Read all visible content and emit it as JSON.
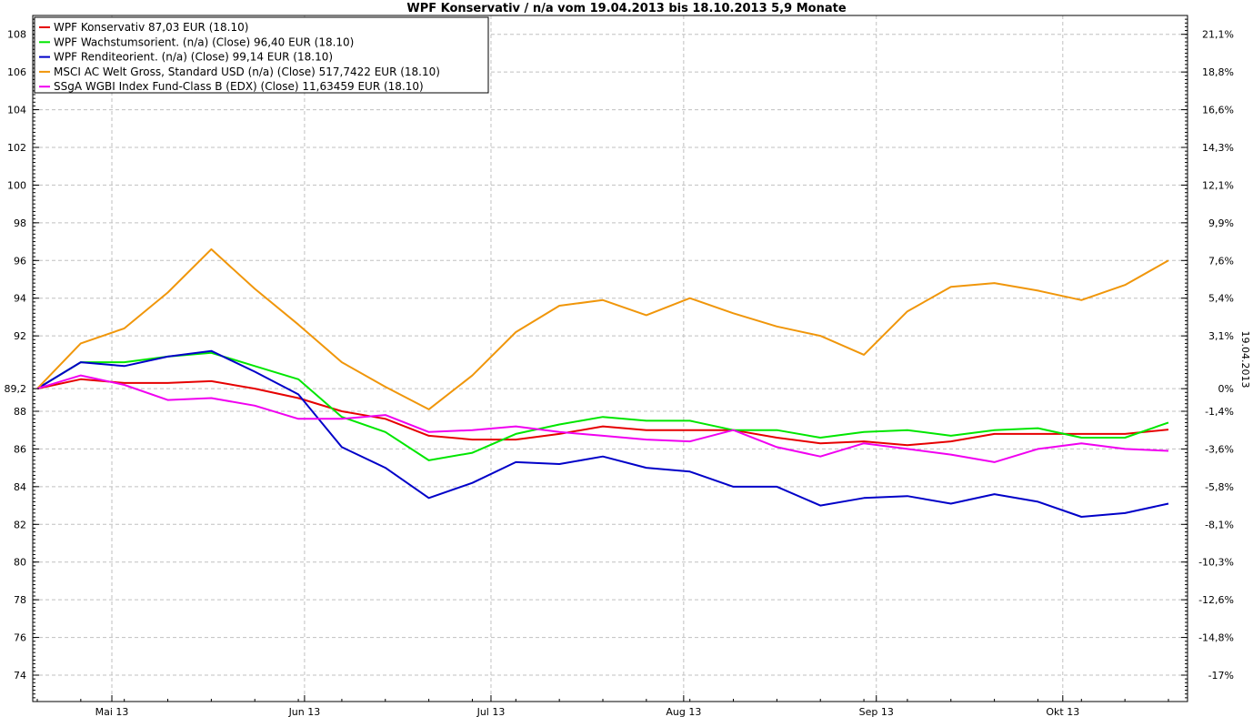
{
  "chart_data": {
    "type": "line",
    "title": "WPF Konservativ / n/a vom 19.04.2013 bis 18.10.2013 5,9 Monate",
    "x_labels": [
      "Mai 13",
      "Jun 13",
      "Jul 13",
      "Aug 13",
      "Sep 13",
      "Okt 13"
    ],
    "y_ticks": [
      "74",
      "76",
      "78",
      "80",
      "82",
      "84",
      "86",
      "88",
      "89,2",
      "92",
      "94",
      "96",
      "98",
      "100",
      "102",
      "104",
      "106",
      "108"
    ],
    "y_right_ticks": [
      "-17%",
      "-14,8%",
      "-12,6%",
      "-10,3%",
      "-8,1%",
      "-5,8%",
      "-3,6%",
      "-1,4%",
      "0%",
      "3,1%",
      "5,4%",
      "7,6%",
      "9,9%",
      "12,1%",
      "14,3%",
      "16,6%",
      "18,8%",
      "21,1%"
    ],
    "right_axis_label": "19.04.2013",
    "ylim": [
      72.6,
      109
    ],
    "grid": true,
    "legend_position": "top-left",
    "x_dates": [
      "19.04",
      "26.04",
      "03.05",
      "10.05",
      "17.05",
      "24.05",
      "31.05",
      "07.06",
      "14.06",
      "21.06",
      "28.06",
      "05.07",
      "12.07",
      "19.07",
      "26.07",
      "02.08",
      "09.08",
      "16.08",
      "23.08",
      "30.08",
      "06.09",
      "13.09",
      "20.09",
      "27.09",
      "04.10",
      "11.10",
      "18.10"
    ],
    "series": [
      {
        "name": "WPF Konservativ 87,03 EUR (18.10)",
        "color": "#e60000",
        "values": [
          89.2,
          89.7,
          89.5,
          89.5,
          89.6,
          89.2,
          88.7,
          88.0,
          87.6,
          86.7,
          86.5,
          86.5,
          86.8,
          87.2,
          87.0,
          87.0,
          87.0,
          86.6,
          86.3,
          86.4,
          86.2,
          86.4,
          86.8,
          86.8,
          86.8,
          86.8,
          87.03
        ]
      },
      {
        "name": "WPF Wachstumsorient. (n/a) (Close) 96,40 EUR (18.10)",
        "color": "#00e600",
        "values": [
          89.2,
          90.6,
          90.6,
          90.9,
          91.1,
          90.4,
          89.7,
          87.7,
          86.9,
          85.4,
          85.8,
          86.8,
          87.3,
          87.7,
          87.5,
          87.5,
          87.0,
          87.0,
          86.6,
          86.9,
          87.0,
          86.7,
          87.0,
          87.1,
          86.6,
          86.6,
          87.4
        ]
      },
      {
        "name": "WPF Renditeorient. (n/a) (Close) 99,14 EUR (18.10)",
        "color": "#0000c8",
        "values": [
          89.2,
          90.6,
          90.4,
          90.9,
          91.2,
          90.1,
          88.9,
          86.1,
          85.0,
          83.4,
          84.2,
          85.3,
          85.2,
          85.6,
          85.0,
          84.8,
          84.0,
          84.0,
          83.0,
          83.4,
          83.5,
          83.1,
          83.6,
          83.2,
          82.4,
          82.6,
          83.1
        ]
      },
      {
        "name": "MSCI AC Welt Gross, Standard USD (n/a) (Close) 517,7422 EUR (18.10)",
        "color": "#f0960a",
        "values": [
          89.2,
          91.6,
          92.4,
          94.3,
          96.6,
          94.5,
          92.6,
          90.6,
          89.3,
          88.1,
          89.9,
          92.2,
          93.6,
          93.9,
          93.1,
          94.0,
          93.2,
          92.5,
          92.0,
          91.0,
          93.3,
          94.6,
          94.8,
          94.4,
          93.9,
          94.7,
          96.0
        ]
      },
      {
        "name": "SSgA WGBI Index Fund-Class B (EDX) (Close) 11,63459 EUR (18.10)",
        "color": "#f000f0",
        "values": [
          89.2,
          89.9,
          89.4,
          88.6,
          88.7,
          88.3,
          87.6,
          87.6,
          87.8,
          86.9,
          87.0,
          87.2,
          86.9,
          86.7,
          86.5,
          86.4,
          87.0,
          86.1,
          85.6,
          86.3,
          86.0,
          85.7,
          85.3,
          86.0,
          86.3,
          86.0,
          85.9
        ]
      }
    ]
  }
}
